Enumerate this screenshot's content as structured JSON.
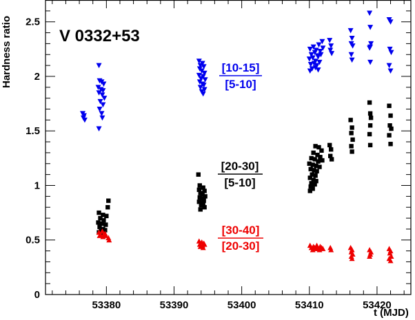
{
  "chart_data": {
    "type": "scatter",
    "title": "V 0332+53",
    "xlabel": "t (MJD)",
    "ylabel": "Hardness ratio",
    "xlim": [
      53371,
      53425
    ],
    "ylim": [
      0,
      2.7
    ],
    "xticks": [
      53380,
      53390,
      53400,
      53410,
      53420
    ],
    "xtick_labels": [
      "53380",
      "53390",
      "53400",
      "53410",
      "53420"
    ],
    "yticks": [
      0,
      0.5,
      1,
      1.5,
      2,
      2.5
    ],
    "ytick_labels": [
      "0",
      "0.5",
      "1",
      "1.5",
      "2",
      "2.5"
    ],
    "grid": false,
    "legend": "none",
    "series": [
      {
        "color": "#0000ee",
        "marker": "triangle-down",
        "label_numerator": "[10-15]",
        "label_denominator": "[5-10]",
        "points": [
          [
            53376.5,
            1.66
          ],
          [
            53376.7,
            1.64
          ],
          [
            53376.6,
            1.62
          ],
          [
            53376.8,
            1.6
          ],
          [
            53378.9,
            2.1
          ],
          [
            53379.0,
            1.96
          ],
          [
            53379.3,
            1.95
          ],
          [
            53379.6,
            1.93
          ],
          [
            53378.8,
            1.9
          ],
          [
            53379.2,
            1.88
          ],
          [
            53379.5,
            1.87
          ],
          [
            53378.9,
            1.85
          ],
          [
            53379.4,
            1.83
          ],
          [
            53379.7,
            1.8
          ],
          [
            53379.1,
            1.77
          ],
          [
            53379.5,
            1.74
          ],
          [
            53379.0,
            1.7
          ],
          [
            53379.3,
            1.66
          ],
          [
            53379.4,
            1.62
          ],
          [
            53378.9,
            1.52
          ],
          [
            53393.7,
            2.14
          ],
          [
            53394.2,
            2.12
          ],
          [
            53393.9,
            2.1
          ],
          [
            53394.4,
            2.09
          ],
          [
            53393.8,
            2.07
          ],
          [
            53394.1,
            2.05
          ],
          [
            53394.5,
            2.03
          ],
          [
            53393.7,
            2.01
          ],
          [
            53394.3,
            2.0
          ],
          [
            53394.0,
            1.98
          ],
          [
            53394.6,
            1.97
          ],
          [
            53393.8,
            1.95
          ],
          [
            53394.2,
            1.93
          ],
          [
            53394.4,
            1.92
          ],
          [
            53393.9,
            1.9
          ],
          [
            53394.5,
            1.88
          ],
          [
            53394.1,
            1.86
          ],
          [
            53394.3,
            1.84
          ],
          [
            53410.1,
            2.25
          ],
          [
            53410.6,
            2.27
          ],
          [
            53411.0,
            2.24
          ],
          [
            53411.4,
            2.29
          ],
          [
            53411.9,
            2.32
          ],
          [
            53410.3,
            2.2
          ],
          [
            53410.8,
            2.22
          ],
          [
            53411.2,
            2.19
          ],
          [
            53411.6,
            2.23
          ],
          [
            53412.0,
            2.26
          ],
          [
            53410.0,
            2.16
          ],
          [
            53410.5,
            2.17
          ],
          [
            53410.9,
            2.14
          ],
          [
            53411.3,
            2.18
          ],
          [
            53411.7,
            2.2
          ],
          [
            53410.2,
            2.11
          ],
          [
            53410.7,
            2.12
          ],
          [
            53411.1,
            2.1
          ],
          [
            53411.5,
            2.13
          ],
          [
            53410.4,
            2.07
          ],
          [
            53410.9,
            2.08
          ],
          [
            53411.3,
            2.06
          ],
          [
            53410.1,
            2.05
          ],
          [
            53413.0,
            2.33
          ],
          [
            53413.2,
            2.28
          ],
          [
            53413.1,
            2.24
          ],
          [
            53413.3,
            2.21
          ],
          [
            53416.1,
            2.42
          ],
          [
            53416.3,
            2.35
          ],
          [
            53416.2,
            2.3
          ],
          [
            53416.4,
            2.28
          ],
          [
            53416.2,
            2.2
          ],
          [
            53416.3,
            2.15
          ],
          [
            53418.9,
            2.58
          ],
          [
            53419.0,
            2.45
          ],
          [
            53419.1,
            2.3
          ],
          [
            53419.0,
            2.27
          ],
          [
            53418.9,
            2.26
          ],
          [
            53419.0,
            2.13
          ],
          [
            53421.8,
            2.52
          ],
          [
            53422.0,
            2.5
          ],
          [
            53421.9,
            2.25
          ],
          [
            53422.1,
            2.22
          ],
          [
            53421.8,
            2.1
          ],
          [
            53422.0,
            2.05
          ]
        ]
      },
      {
        "color": "#000000",
        "marker": "square",
        "label_numerator": "[20-30]",
        "label_denominator": "[5-10]",
        "points": [
          [
            53378.9,
            0.75
          ],
          [
            53379.5,
            0.73
          ],
          [
            53380.3,
            0.86
          ],
          [
            53380.2,
            0.8
          ],
          [
            53380.0,
            0.72
          ],
          [
            53379.1,
            0.7
          ],
          [
            53379.6,
            0.68
          ],
          [
            53378.8,
            0.66
          ],
          [
            53379.3,
            0.65
          ],
          [
            53379.9,
            0.64
          ],
          [
            53379.0,
            0.62
          ],
          [
            53379.5,
            0.6
          ],
          [
            53379.8,
            0.59
          ],
          [
            53379.2,
            0.58
          ],
          [
            53378.9,
            0.57
          ],
          [
            53379.6,
            0.56
          ],
          [
            53393.6,
            1.1
          ],
          [
            53393.8,
            1.0
          ],
          [
            53394.3,
            0.98
          ],
          [
            53393.7,
            0.96
          ],
          [
            53394.5,
            0.95
          ],
          [
            53393.9,
            0.93
          ],
          [
            53394.2,
            0.92
          ],
          [
            53394.6,
            0.9
          ],
          [
            53393.8,
            0.89
          ],
          [
            53394.1,
            0.88
          ],
          [
            53394.4,
            0.86
          ],
          [
            53393.7,
            0.85
          ],
          [
            53394.3,
            0.84
          ],
          [
            53394.0,
            0.82
          ],
          [
            53394.5,
            0.8
          ],
          [
            53393.9,
            0.78
          ],
          [
            53410.9,
            1.36
          ],
          [
            53411.4,
            1.35
          ],
          [
            53411.8,
            1.32
          ],
          [
            53410.6,
            1.3
          ],
          [
            53411.2,
            1.28
          ],
          [
            53411.6,
            1.26
          ],
          [
            53410.3,
            1.25
          ],
          [
            53410.8,
            1.24
          ],
          [
            53411.3,
            1.22
          ],
          [
            53411.9,
            1.23
          ],
          [
            53410.0,
            1.2
          ],
          [
            53410.5,
            1.19
          ],
          [
            53411.0,
            1.18
          ],
          [
            53411.5,
            1.17
          ],
          [
            53410.2,
            1.15
          ],
          [
            53410.7,
            1.14
          ],
          [
            53411.1,
            1.13
          ],
          [
            53410.4,
            1.1
          ],
          [
            53410.9,
            1.09
          ],
          [
            53410.1,
            1.07
          ],
          [
            53410.6,
            1.05
          ],
          [
            53411.0,
            1.04
          ],
          [
            53410.3,
            1.02
          ],
          [
            53410.8,
            1.01
          ],
          [
            53410.2,
            0.99
          ],
          [
            53410.5,
            0.97
          ],
          [
            53410.1,
            0.95
          ],
          [
            53413.0,
            1.37
          ],
          [
            53413.2,
            1.33
          ],
          [
            53413.1,
            1.27
          ],
          [
            53413.3,
            1.24
          ],
          [
            53416.1,
            1.6
          ],
          [
            53416.3,
            1.53
          ],
          [
            53416.2,
            1.48
          ],
          [
            53416.4,
            1.42
          ],
          [
            53416.2,
            1.36
          ],
          [
            53416.3,
            1.31
          ],
          [
            53418.9,
            1.76
          ],
          [
            53419.0,
            1.66
          ],
          [
            53419.1,
            1.62
          ],
          [
            53419.0,
            1.55
          ],
          [
            53418.9,
            1.47
          ],
          [
            53419.0,
            1.37
          ],
          [
            53421.8,
            1.73
          ],
          [
            53422.0,
            1.64
          ],
          [
            53421.9,
            1.55
          ],
          [
            53422.1,
            1.52
          ],
          [
            53421.8,
            1.46
          ],
          [
            53422.0,
            1.38
          ]
        ]
      },
      {
        "color": "#ee0000",
        "marker": "triangle-up",
        "label_numerator": "[30-40]",
        "label_denominator": "[20-30]",
        "points": [
          [
            53378.9,
            0.57
          ],
          [
            53379.4,
            0.58
          ],
          [
            53379.8,
            0.56
          ],
          [
            53379.1,
            0.55
          ],
          [
            53379.6,
            0.55
          ],
          [
            53379.0,
            0.54
          ],
          [
            53379.5,
            0.53
          ],
          [
            53379.9,
            0.54
          ],
          [
            53380.3,
            0.52
          ],
          [
            53380.4,
            0.5
          ],
          [
            53393.7,
            0.49
          ],
          [
            53394.1,
            0.48
          ],
          [
            53394.4,
            0.47
          ],
          [
            53393.8,
            0.46
          ],
          [
            53394.2,
            0.45
          ],
          [
            53394.5,
            0.46
          ],
          [
            53393.9,
            0.44
          ],
          [
            53394.3,
            0.43
          ],
          [
            53410.1,
            0.45
          ],
          [
            53410.6,
            0.44
          ],
          [
            53411.1,
            0.45
          ],
          [
            53411.6,
            0.44
          ],
          [
            53410.3,
            0.43
          ],
          [
            53410.8,
            0.43
          ],
          [
            53411.3,
            0.42
          ],
          [
            53411.8,
            0.43
          ],
          [
            53410.5,
            0.41
          ],
          [
            53411.0,
            0.42
          ],
          [
            53411.5,
            0.41
          ],
          [
            53412.0,
            0.42
          ],
          [
            53413.1,
            0.43
          ],
          [
            53413.2,
            0.41
          ],
          [
            53416.1,
            0.43
          ],
          [
            53416.3,
            0.41
          ],
          [
            53416.2,
            0.39
          ],
          [
            53416.4,
            0.37
          ],
          [
            53416.2,
            0.35
          ],
          [
            53416.3,
            0.33
          ],
          [
            53418.9,
            0.41
          ],
          [
            53419.1,
            0.39
          ],
          [
            53419.0,
            0.37
          ],
          [
            53418.9,
            0.35
          ],
          [
            53421.8,
            0.42
          ],
          [
            53422.0,
            0.4
          ],
          [
            53421.9,
            0.38
          ],
          [
            53422.1,
            0.35
          ],
          [
            53421.8,
            0.33
          ],
          [
            53422.0,
            0.31
          ]
        ]
      }
    ]
  }
}
